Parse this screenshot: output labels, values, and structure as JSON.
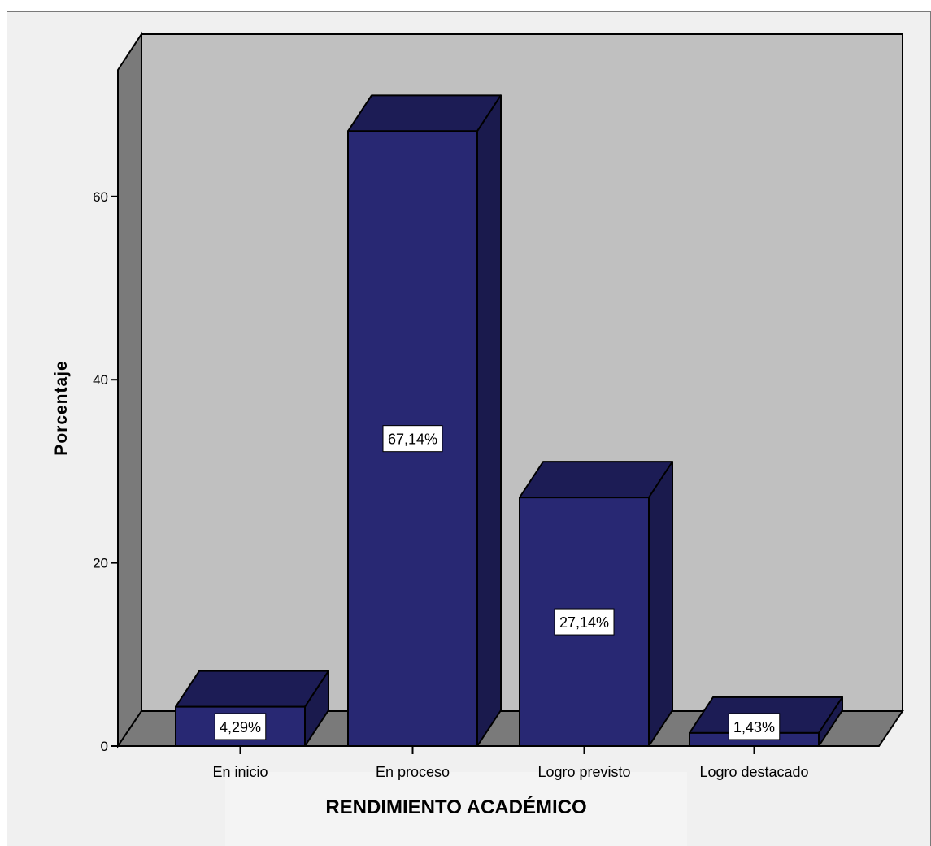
{
  "chart_data": {
    "type": "bar",
    "categories": [
      "En inicio",
      "En proceso",
      "Logro previsto",
      "Logro destacado"
    ],
    "values": [
      4.29,
      67.14,
      27.14,
      1.43
    ],
    "data_labels": [
      "4,29%",
      "67,14%",
      "27,14%",
      "1,43%"
    ],
    "yticks": [
      0,
      20,
      40,
      60
    ],
    "ytick_labels": [
      "0",
      "20",
      "40",
      "60"
    ],
    "ylim": [
      0,
      75
    ],
    "xlabel": "RENDIMIENTO ACADÉMICO",
    "ylabel": "Porcentaje",
    "title": "",
    "grid": false,
    "colors": {
      "bar_front": "#282873",
      "bar_top": "#1c1c55",
      "bar_side": "#1a1a4d",
      "back_wall": "#c0c0c0",
      "side_wall": "#7a7a7a",
      "floor": "#7a7a7a",
      "background": "#f0f0f0"
    }
  }
}
